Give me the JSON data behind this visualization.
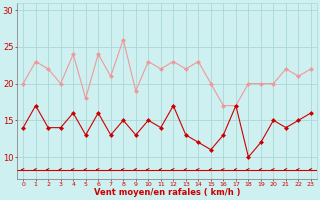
{
  "x": [
    0,
    1,
    2,
    3,
    4,
    5,
    6,
    7,
    8,
    9,
    10,
    11,
    12,
    13,
    14,
    15,
    16,
    17,
    18,
    19,
    20,
    21,
    22,
    23
  ],
  "avg_wind": [
    14,
    17,
    14,
    14,
    16,
    13,
    16,
    13,
    15,
    13,
    15,
    14,
    17,
    13,
    12,
    11,
    13,
    17,
    10,
    12,
    15,
    14,
    15,
    16
  ],
  "gust_wind": [
    20,
    23,
    22,
    20,
    24,
    18,
    24,
    21,
    26,
    19,
    23,
    22,
    23,
    22,
    23,
    20,
    17,
    17,
    20,
    20,
    20,
    22,
    21,
    22
  ],
  "avg_color": "#cc0000",
  "gust_color": "#ee9999",
  "arrow_color": "#cc0000",
  "bg_color": "#cff0f0",
  "grid_color": "#aad8d8",
  "xlabel": "Vent moyen/en rafales ( km/h )",
  "xlabel_color": "#cc0000",
  "tick_color": "#cc0000",
  "ylim": [
    7,
    31
  ],
  "yticks": [
    10,
    15,
    20,
    25,
    30
  ],
  "xlim": [
    -0.5,
    23.5
  ]
}
